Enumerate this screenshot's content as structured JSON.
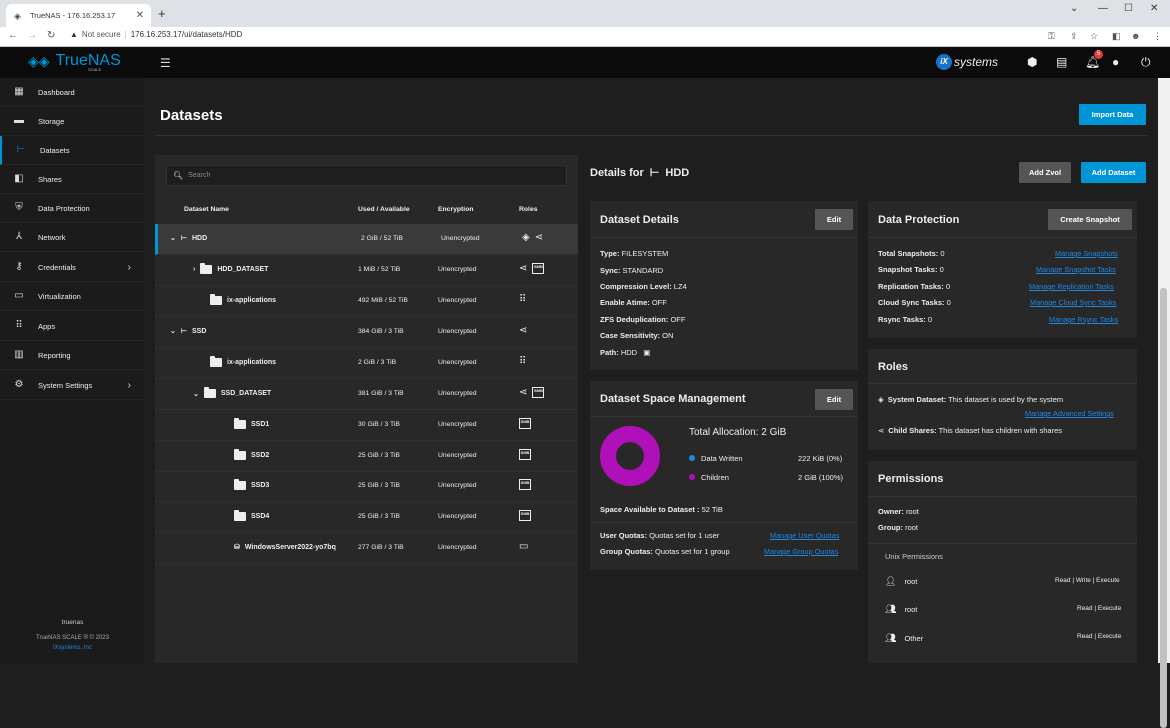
{
  "browser": {
    "tab_title": "TrueNAS - 176.16.253.17",
    "not_secure": "Not secure",
    "url": "176.16.253.17/ui/datasets/HDD"
  },
  "header": {
    "logo_text": "TrueNAS",
    "logo_sub": "SCALE",
    "ix_text": "systems",
    "notifications_count": "5"
  },
  "sidebar": {
    "items": [
      {
        "label": "Dashboard",
        "icon": "dashboard-icon"
      },
      {
        "label": "Storage",
        "icon": "storage-icon"
      },
      {
        "label": "Datasets",
        "icon": "datasets-icon"
      },
      {
        "label": "Shares",
        "icon": "shares-icon"
      },
      {
        "label": "Data Protection",
        "icon": "shield-icon"
      },
      {
        "label": "Network",
        "icon": "network-icon"
      },
      {
        "label": "Credentials",
        "icon": "key-icon"
      },
      {
        "label": "Virtualization",
        "icon": "laptop-icon"
      },
      {
        "label": "Apps",
        "icon": "apps-grid-icon"
      },
      {
        "label": "Reporting",
        "icon": "chart-icon"
      },
      {
        "label": "System Settings",
        "icon": "gear-icon"
      }
    ],
    "hostname": "truenas",
    "copyright": "TrueNAS SCALE ® © 2023",
    "company": "iXsystems, Inc"
  },
  "page": {
    "title": "Datasets",
    "import_label": "Import Data",
    "add_zvol_label": "Add Zvol",
    "add_dataset_label": "Add Dataset",
    "details_prefix": "Details for",
    "details_name": "HDD"
  },
  "tree": {
    "search_placeholder": "Search",
    "headers": [
      "Dataset Name",
      "Used / Available",
      "Encryption",
      "Roles"
    ],
    "rows": [
      {
        "name": "HDD",
        "used": "2 GiB / 52 TiB",
        "enc": "Unencrypted"
      },
      {
        "name": "HDD_DATASET",
        "used": "1 MiB / 52 TiB",
        "enc": "Unencrypted"
      },
      {
        "name": "ix-applications",
        "used": "492 MiB / 52 TiB",
        "enc": "Unencrypted"
      },
      {
        "name": "SSD",
        "used": "384 GiB / 3 TiB",
        "enc": "Unencrypted"
      },
      {
        "name": "ix-applications",
        "used": "2 GiB / 3 TiB",
        "enc": "Unencrypted"
      },
      {
        "name": "SSD_DATASET",
        "used": "381 GiB / 3 TiB",
        "enc": "Unencrypted"
      },
      {
        "name": "SSD1",
        "used": "30 GiB / 3 TiB",
        "enc": "Unencrypted"
      },
      {
        "name": "SSD2",
        "used": "25 GiB / 3 TiB",
        "enc": "Unencrypted"
      },
      {
        "name": "SSD3",
        "used": "25 GiB / 3 TiB",
        "enc": "Unencrypted"
      },
      {
        "name": "SSD4",
        "used": "25 GiB / 3 TiB",
        "enc": "Unencrypted"
      },
      {
        "name": "WindowsServer2022-yo7bq",
        "used": "277 GiB / 3 TiB",
        "enc": "Unencrypted"
      }
    ]
  },
  "dataset_details": {
    "title": "Dataset Details",
    "edit_label": "Edit",
    "type_k": "Type:",
    "type_v": "FILESYSTEM",
    "sync_k": "Sync:",
    "sync_v": "STANDARD",
    "comp_k": "Compression Level:",
    "comp_v": "LZ4",
    "atime_k": "Enable Atime:",
    "atime_v": "OFF",
    "dedup_k": "ZFS Deduplication:",
    "dedup_v": "OFF",
    "case_k": "Case Sensitivity:",
    "case_v": "ON",
    "path_k": "Path:",
    "path_v": "HDD"
  },
  "space": {
    "title": "Dataset Space Management",
    "edit_label": "Edit",
    "total": "Total Allocation:  2 GiB",
    "written_label": "Data Written",
    "written_value": "222 KiB (0%)",
    "children_label": "Children",
    "children_value": "2 GiB (100%)",
    "available_k": "Space Available to Dataset :",
    "available_v": "52 TiB",
    "user_q_k": "User Quotas:",
    "user_q_v": "Quotas set for 1 user",
    "user_q_link": "Manage User Quotas",
    "group_q_k": "Group Quotas:",
    "group_q_v": "Quotas set for 1 group",
    "group_q_link": "Manage Group Quotas",
    "colors": {
      "written": "#1e88e5",
      "children": "#b010b8"
    }
  },
  "protection": {
    "title": "Data Protection",
    "create_label": "Create Snapshot",
    "rows": [
      {
        "k": "Total Snapshots:",
        "v": "0",
        "link": "Manage Snapshots"
      },
      {
        "k": "Snapshot Tasks:",
        "v": "0",
        "link": "Manage Snapshot Tasks"
      },
      {
        "k": "Replication Tasks:",
        "v": "0",
        "link": "Manage Replication Tasks"
      },
      {
        "k": "Cloud Sync Tasks:",
        "v": "0",
        "link": "Manage Cloud Sync Tasks"
      },
      {
        "k": "Rsync Tasks:",
        "v": "0",
        "link": "Manage Rsync Tasks"
      }
    ]
  },
  "roles": {
    "title": "Roles",
    "sys_k": "System Dataset:",
    "sys_v": "This dataset is used by the system",
    "sys_link": "Manage Advanced Settings",
    "child_k": "Child Shares:",
    "child_v": "This dataset has children with shares"
  },
  "permissions": {
    "title": "Permissions",
    "owner_k": "Owner:",
    "owner_v": "root",
    "group_k": "Group:",
    "group_v": "root",
    "unix_label": "Unix Permissions",
    "entries": [
      {
        "name": "root",
        "perm": "Read | Write | Execute"
      },
      {
        "name": "root",
        "perm": "Read | Execute"
      },
      {
        "name": "Other",
        "perm": "Read | Execute"
      }
    ]
  }
}
